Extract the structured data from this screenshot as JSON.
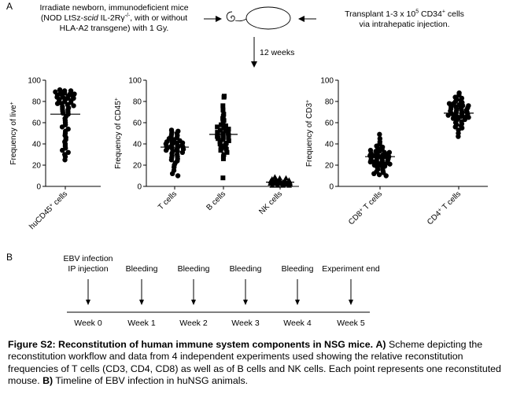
{
  "panel_a": {
    "label": "A",
    "irradiate_line1": "Irradiate newborn, immunodeficient mice",
    "irradiate_line2_pre": "(NOD LtSz-",
    "irradiate_line2_italic": "scid",
    "irradiate_line2_mid": " IL-2Rγ",
    "irradiate_line2_sup": "-/-",
    "irradiate_line2_post": ", with or without",
    "irradiate_line3": "HLA-A2 transgene) with 1 Gy.",
    "transplant_line1_pre": "Transplant 1-3 x 10",
    "transplant_line1_sup": "5",
    "transplant_line1_mid": " CD34",
    "transplant_line1_sup2": "+",
    "transplant_line1_post": " cells",
    "transplant_line2": "via intrahepatic injection.",
    "weeks_label": "12 weeks"
  },
  "chart_data": [
    {
      "type": "scatter",
      "ylabel": "Frequency of live+",
      "ylabel_main": "Frequency of live",
      "ylabel_sup": "+",
      "ylim": [
        0,
        100
      ],
      "yticks": [
        "0",
        "20",
        "40",
        "60",
        "80",
        "100"
      ],
      "categories": [
        "huCD45+ cells"
      ],
      "category_main": [
        "huCD45"
      ],
      "category_sup": [
        "+"
      ],
      "category_post": [
        " cells"
      ],
      "marker": "circle",
      "means": [
        68
      ],
      "values": [
        [
          91,
          90,
          90,
          89,
          88,
          88,
          87,
          87,
          86,
          86,
          85,
          85,
          84,
          84,
          83,
          83,
          82,
          82,
          81,
          80,
          80,
          79,
          78,
          78,
          77,
          76,
          75,
          74,
          73,
          72,
          71,
          70,
          69,
          68,
          66,
          64,
          62,
          60,
          58,
          56,
          54,
          52,
          50,
          48,
          46,
          44,
          42,
          40,
          38,
          36,
          34,
          32,
          30,
          28,
          25
        ]
      ]
    },
    {
      "type": "scatter",
      "ylabel": "Frequency of CD45+",
      "ylabel_main": "Frequency of CD45",
      "ylabel_sup": "+",
      "ylim": [
        0,
        100
      ],
      "yticks": [
        "0",
        "20",
        "40",
        "60",
        "80",
        "100"
      ],
      "categories": [
        "T cells",
        "B cells",
        "NK cells"
      ],
      "category_main": [
        "T cells",
        "B cells",
        "NK cells"
      ],
      "category_sup": [
        "",
        "",
        ""
      ],
      "category_post": [
        "",
        "",
        ""
      ],
      "marker": [
        "circle",
        "square",
        "triangle"
      ],
      "means": [
        37,
        49,
        4
      ],
      "values": [
        [
          53,
          52,
          51,
          50,
          49,
          48,
          47,
          46,
          45,
          44,
          43,
          42,
          42,
          41,
          41,
          40,
          40,
          39,
          39,
          38,
          38,
          37,
          37,
          36,
          36,
          35,
          35,
          34,
          33,
          33,
          32,
          31,
          30,
          29,
          28,
          27,
          26,
          25,
          24,
          22,
          20,
          18,
          15,
          12,
          10
        ],
        [
          85,
          84,
          76,
          72,
          68,
          66,
          64,
          62,
          60,
          58,
          57,
          56,
          55,
          54,
          53,
          52,
          51,
          50,
          50,
          49,
          49,
          48,
          47,
          46,
          46,
          45,
          44,
          43,
          42,
          41,
          40,
          39,
          38,
          37,
          36,
          35,
          34,
          32,
          30,
          28,
          26,
          8
        ],
        [
          9,
          8,
          8,
          7,
          7,
          6,
          6,
          6,
          5,
          5,
          5,
          5,
          4,
          4,
          4,
          4,
          4,
          3,
          3,
          3,
          3,
          3,
          2,
          2,
          2,
          2,
          1,
          1,
          1,
          1
        ]
      ]
    },
    {
      "type": "scatter",
      "ylabel": "Frequency of CD3+",
      "ylabel_main": "Frequency of CD3",
      "ylabel_sup": "+",
      "ylim": [
        0,
        100
      ],
      "yticks": [
        "0",
        "20",
        "40",
        "60",
        "80",
        "100"
      ],
      "categories": [
        "CD8+ T cells",
        "CD4+ T cells"
      ],
      "category_main": [
        "CD8",
        "CD4"
      ],
      "category_sup": [
        "+",
        "+"
      ],
      "category_post": [
        " T cells",
        " T cells"
      ],
      "marker": [
        "circle",
        "circle"
      ],
      "means": [
        28,
        69
      ],
      "values": [
        [
          49,
          45,
          42,
          40,
          38,
          37,
          36,
          35,
          34,
          33,
          33,
          32,
          32,
          31,
          31,
          30,
          30,
          29,
          29,
          28,
          28,
          28,
          27,
          27,
          26,
          26,
          25,
          25,
          24,
          24,
          23,
          23,
          22,
          22,
          21,
          21,
          20,
          20,
          19,
          18,
          17,
          16,
          15,
          14,
          13,
          12,
          11,
          10
        ],
        [
          88,
          86,
          84,
          83,
          82,
          81,
          80,
          79,
          78,
          78,
          77,
          76,
          76,
          75,
          75,
          74,
          74,
          73,
          73,
          72,
          72,
          71,
          71,
          70,
          70,
          69,
          69,
          68,
          68,
          67,
          67,
          66,
          66,
          65,
          65,
          64,
          64,
          63,
          62,
          61,
          60,
          59,
          58,
          57,
          56,
          55,
          53,
          50,
          47
        ]
      ]
    }
  ],
  "panel_b": {
    "label": "B",
    "events": [
      {
        "line1": "EBV infection",
        "line2": "IP injection"
      },
      {
        "line1": "",
        "line2": "Bleeding"
      },
      {
        "line1": "",
        "line2": "Bleeding"
      },
      {
        "line1": "",
        "line2": "Bleeding"
      },
      {
        "line1": "",
        "line2": "Bleeding"
      },
      {
        "line1": "",
        "line2": "Experiment end"
      }
    ],
    "weeks": [
      "Week 0",
      "Week 1",
      "Week 2",
      "Week 3",
      "Week 4",
      "Week 5"
    ]
  },
  "caption": {
    "bold_intro": "Figure S2: Reconstitution of human immune system components in NSG mice.",
    "bold_a": "A)",
    "text_a": "Scheme depicting the reconstitution workflow and data from 4 independent experiments used showing the relative reconstitution frequencies of T cells (CD3, CD4, CD8) as well as of B cells and NK cells. Each point represents one reconstituted mouse.",
    "bold_b": "B)",
    "text_b": "Timeline of EBV infection in huNSG animals."
  }
}
